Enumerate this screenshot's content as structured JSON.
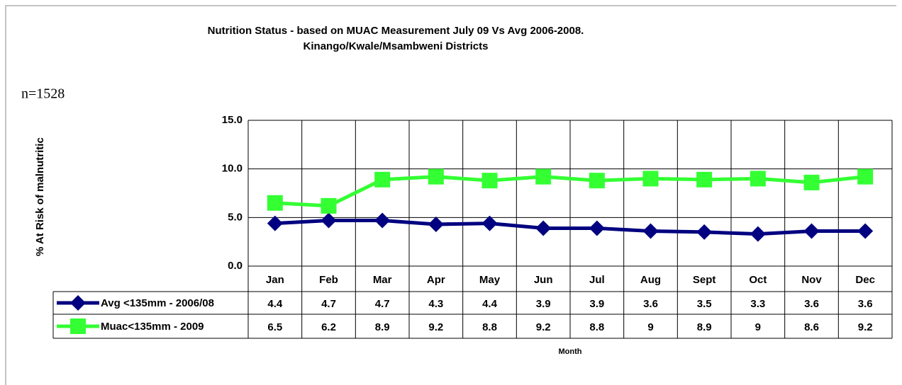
{
  "chart_data": {
    "type": "line",
    "title": [
      "Nutrition Status - based on MUAC Measurement July 09 Vs Avg 2006-2008.",
      "Kinango/Kwale/Msambweni Districts"
    ],
    "annotation": "n=1528",
    "y_label": "% At Risk of malnutritic",
    "x_label": "Month",
    "categories": [
      "Jan",
      "Feb",
      "Mar",
      "Apr",
      "May",
      "Jun",
      "Jul",
      "Aug",
      "Sept",
      "Oct",
      "Nov",
      "Dec"
    ],
    "series": [
      {
        "name": "Avg <135mm -  2006/08",
        "color": "#000080",
        "marker": "diamond",
        "values": [
          4.4,
          4.7,
          4.7,
          4.3,
          4.4,
          3.9,
          3.9,
          3.6,
          3.5,
          3.3,
          3.6,
          3.6
        ]
      },
      {
        "name": "Muac<135mm - 2009",
        "color": "#33ff33",
        "marker": "square",
        "values": [
          6.5,
          6.2,
          8.9,
          9.2,
          8.8,
          9.2,
          8.8,
          9,
          8.9,
          9,
          8.6,
          9.2
        ]
      }
    ],
    "ylim": [
      0,
      15
    ],
    "yticks": [
      {
        "value": 0,
        "label": "0.0"
      },
      {
        "value": 5,
        "label": "5.0"
      },
      {
        "value": 10,
        "label": "10.0"
      },
      {
        "value": 15,
        "label": "15.0"
      }
    ],
    "grid": true
  }
}
